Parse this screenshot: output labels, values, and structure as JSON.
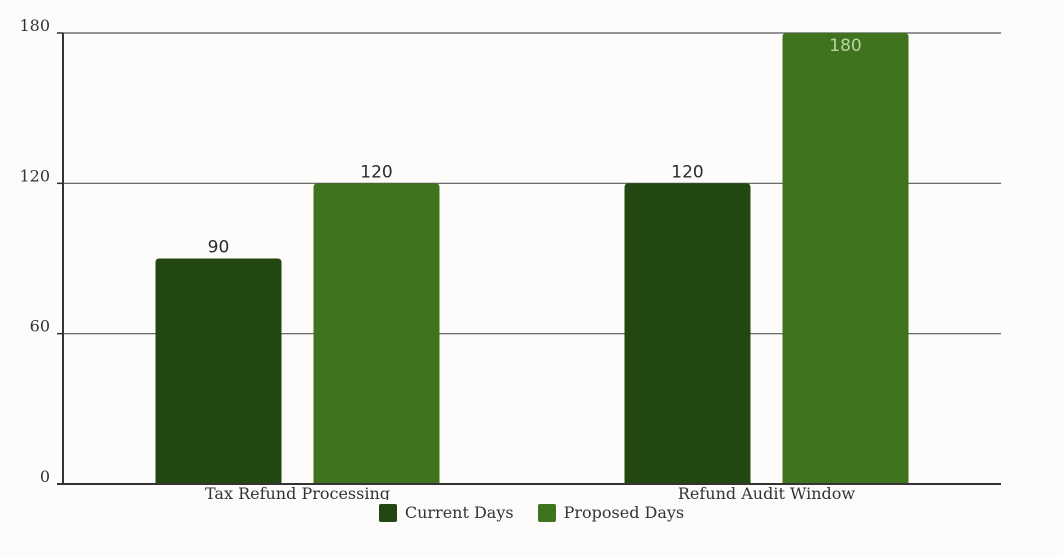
{
  "chart_data": {
    "type": "bar",
    "categories": [
      "Tax Refund Processing",
      "Refund Audit Window"
    ],
    "series": [
      {
        "name": "Current Days",
        "values": [
          90,
          120
        ],
        "color": "#234711"
      },
      {
        "name": "Proposed Days",
        "values": [
          120,
          180
        ],
        "color": "#40731d"
      }
    ],
    "ylim": [
      0,
      180
    ],
    "yticks": [
      0,
      60,
      120,
      180
    ],
    "grid": true,
    "legend": "bottom-center",
    "data_labels": [
      "90",
      "120",
      "120",
      "180"
    ]
  }
}
